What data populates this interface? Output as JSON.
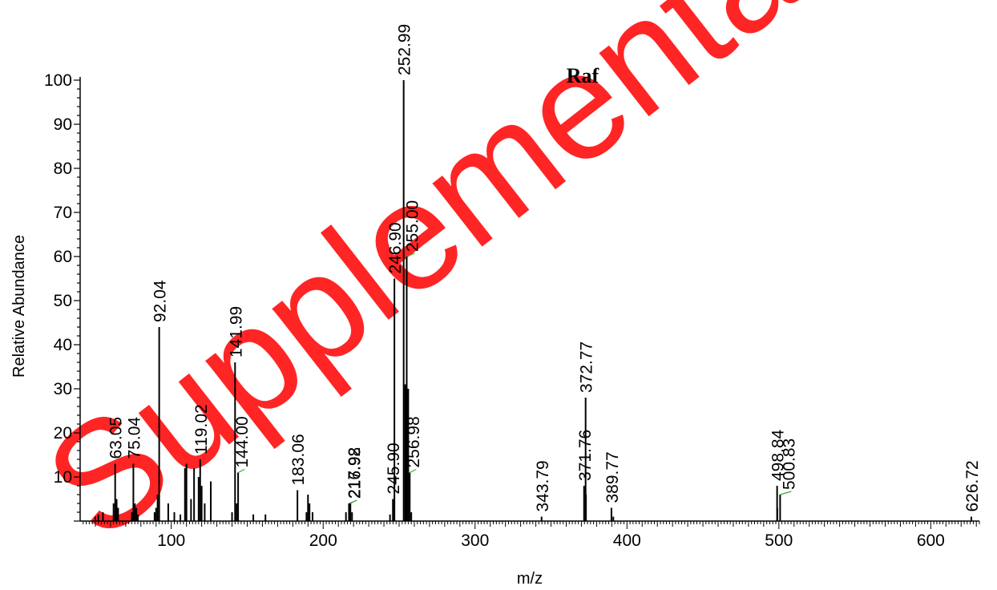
{
  "watermark": "Supplementary",
  "chart_data": {
    "type": "bar",
    "title": "Raf",
    "xlabel": "m/z",
    "ylabel": "Relative Abundance",
    "xlim": [
      40,
      632
    ],
    "ylim": [
      0,
      100
    ],
    "xticks": [
      100,
      200,
      300,
      400,
      500,
      600
    ],
    "yticks": [
      10,
      20,
      30,
      40,
      50,
      60,
      70,
      80,
      90,
      100
    ],
    "grid": false,
    "labeled_peaks": [
      {
        "label": "63.05",
        "x": 63.05,
        "y": 13
      },
      {
        "label": "75.04",
        "x": 75.04,
        "y": 13
      },
      {
        "label": "92.04",
        "x": 92.04,
        "y": 44
      },
      {
        "label": "119.02",
        "x": 119.02,
        "y": 14
      },
      {
        "label": "141.99",
        "x": 141.99,
        "y": 36
      },
      {
        "label": "144.00",
        "x": 144.0,
        "y": 11
      },
      {
        "label": "183.06",
        "x": 183.06,
        "y": 7
      },
      {
        "label": "216.98",
        "x": 216.98,
        "y": 4
      },
      {
        "label": "217.92",
        "x": 217.92,
        "y": 4
      },
      {
        "label": "245.90",
        "x": 245.9,
        "y": 5
      },
      {
        "label": "246.90",
        "x": 246.9,
        "y": 55
      },
      {
        "label": "252.99",
        "x": 252.99,
        "y": 100
      },
      {
        "label": "255.00",
        "x": 255.0,
        "y": 60
      },
      {
        "label": "256.98",
        "x": 256.98,
        "y": 11
      },
      {
        "label": "343.79",
        "x": 343.79,
        "y": 1
      },
      {
        "label": "371.76",
        "x": 371.76,
        "y": 8
      },
      {
        "label": "372.77",
        "x": 372.77,
        "y": 28
      },
      {
        "label": "389.77",
        "x": 389.77,
        "y": 3
      },
      {
        "label": "498.84",
        "x": 498.84,
        "y": 8
      },
      {
        "label": "500.83",
        "x": 500.83,
        "y": 6
      },
      {
        "label": "626.72",
        "x": 626.72,
        "y": 1
      }
    ],
    "unlabeled_peaks": [
      [
        50,
        1
      ],
      [
        52,
        1.5
      ],
      [
        55,
        2
      ],
      [
        62,
        4
      ],
      [
        64,
        5
      ],
      [
        65,
        3
      ],
      [
        74,
        2
      ],
      [
        76,
        4
      ],
      [
        77,
        3
      ],
      [
        78,
        1.5
      ],
      [
        89,
        2
      ],
      [
        90,
        3
      ],
      [
        91,
        6
      ],
      [
        98,
        4
      ],
      [
        102,
        2
      ],
      [
        106,
        1.5
      ],
      [
        109,
        12
      ],
      [
        110,
        13
      ],
      [
        113,
        5
      ],
      [
        115,
        12
      ],
      [
        118,
        10
      ],
      [
        120,
        8
      ],
      [
        122,
        4
      ],
      [
        126,
        9
      ],
      [
        140,
        2
      ],
      [
        143,
        4
      ],
      [
        154,
        1.5
      ],
      [
        162,
        1.5
      ],
      [
        189,
        2
      ],
      [
        190,
        6
      ],
      [
        191,
        4
      ],
      [
        193,
        2
      ],
      [
        215,
        2
      ],
      [
        219,
        2
      ],
      [
        244,
        1.5
      ],
      [
        254,
        31
      ],
      [
        256,
        30
      ],
      [
        258,
        2
      ],
      [
        373,
        6
      ],
      [
        391,
        1
      ],
      [
        499,
        3
      ]
    ]
  }
}
